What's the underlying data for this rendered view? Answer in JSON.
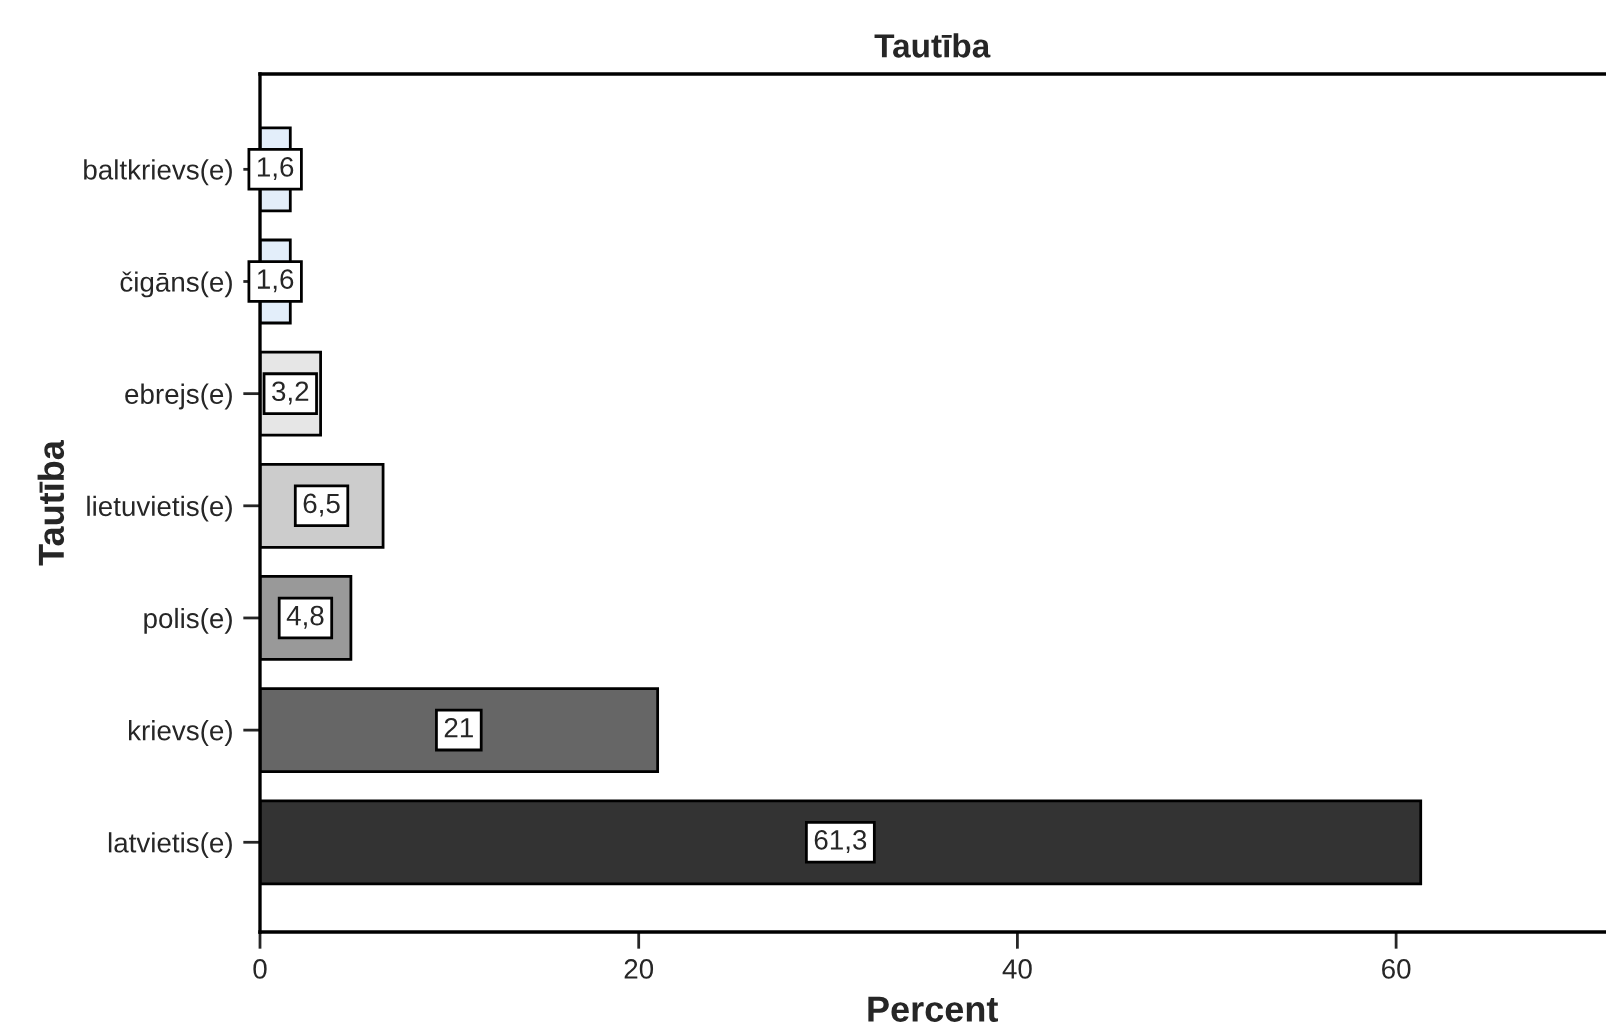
{
  "chart_data": {
    "type": "bar",
    "orientation": "horizontal",
    "title": "Tautība",
    "xlabel": "Percent",
    "ylabel": "Tautība",
    "categories": [
      "baltkrievs(e)",
      "čigāns(e)",
      "ebrejs(e)",
      "lietuvietis(e)",
      "polis(e)",
      "krievs(e)",
      "latvietis(e)"
    ],
    "values": [
      1.6,
      1.6,
      3.2,
      6.5,
      4.8,
      21,
      61.3
    ],
    "value_labels": [
      "1,6",
      "1,6",
      "3,2",
      "6,5",
      "4,8",
      "21",
      "61,3"
    ],
    "colors": [
      "#e3eefa",
      "#e3eefa",
      "#e6e6e6",
      "#cccccc",
      "#999999",
      "#666666",
      "#333333"
    ],
    "xlim": [
      0,
      71
    ],
    "xticks": [
      0,
      20,
      40,
      60
    ],
    "grid": false,
    "legend": false
  }
}
